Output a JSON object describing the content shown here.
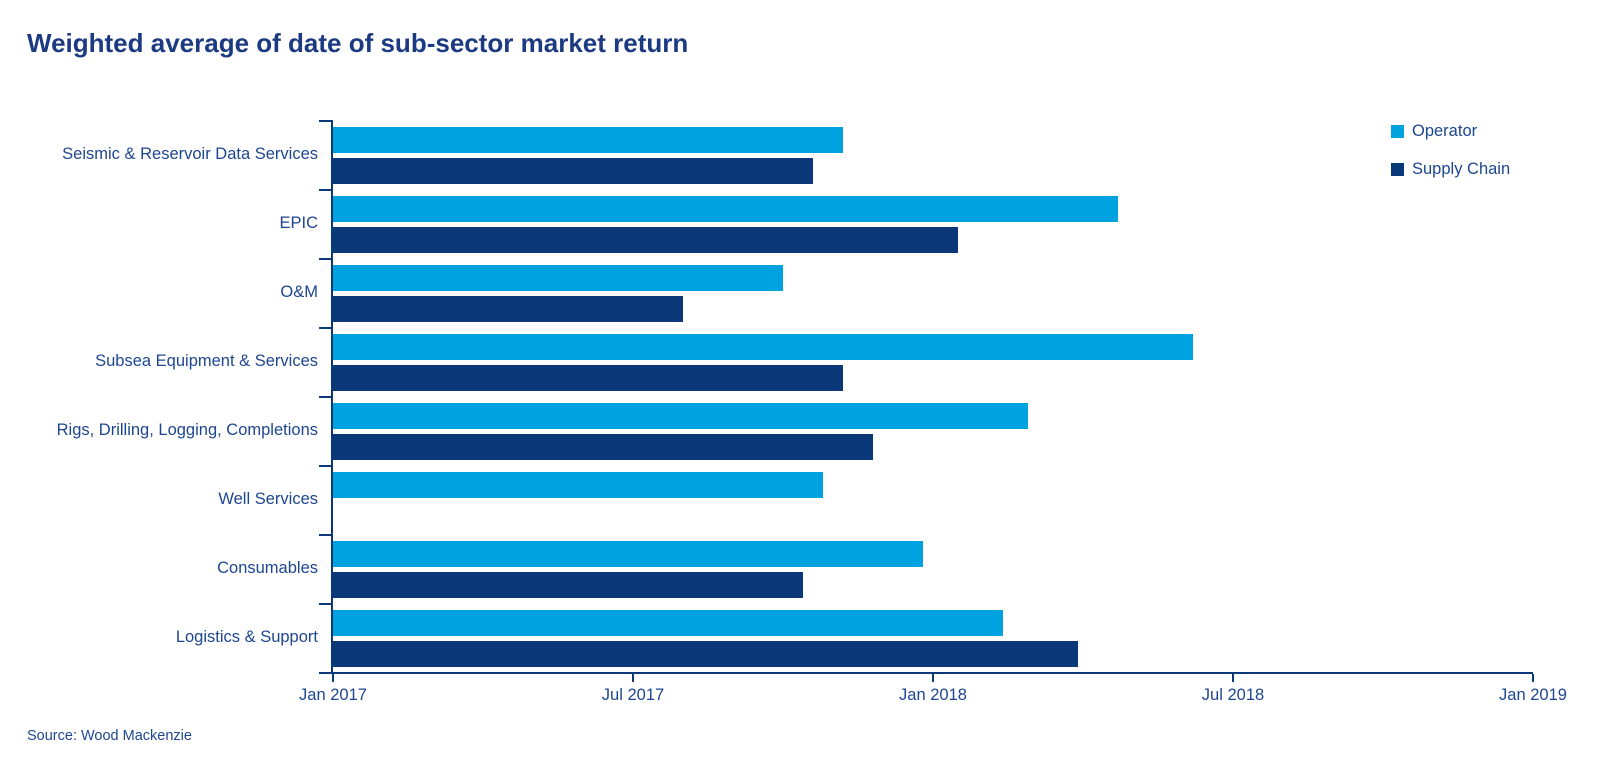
{
  "title": "Weighted average of date of sub-sector market return",
  "source_note": "Source: Wood Mackenzie",
  "colors": {
    "operator": "#00A3E0",
    "supply_chain": "#0B3878",
    "title_text": "#1B3A82",
    "label_text": "#1D4691",
    "axis": "#0B3878",
    "background": "#FFFFFF"
  },
  "legend": {
    "position": "top-right",
    "items": [
      {
        "label": "Operator",
        "color": "#00A3E0"
      },
      {
        "label": "Supply Chain",
        "color": "#0B3878"
      }
    ]
  },
  "chart_data": {
    "type": "bar",
    "orientation": "horizontal",
    "title": "Weighted average of date of sub-sector market return",
    "xlabel": "",
    "ylabel": "",
    "grid": false,
    "legend_position": "top-right",
    "categories": [
      "Seismic & Reservoir Data Services",
      "EPIC",
      "O&M",
      "Subsea Equipment & Services",
      "Rigs, Drilling, Logging, Completions",
      "Well Services",
      "Consumables",
      "Logistics & Support"
    ],
    "x_axis": {
      "tick_labels": [
        "Jan 2017",
        "Jul 2017",
        "Jan 2018",
        "Jul 2018",
        "Jan 2019"
      ],
      "range_months_after_jan2017": [
        0,
        24
      ],
      "months_per_tick": 6
    },
    "series": [
      {
        "name": "Operator",
        "color": "#00A3E0",
        "values_months_after_jan2017": [
          10.2,
          15.7,
          9.0,
          17.2,
          13.9,
          9.8,
          11.8,
          13.4
        ],
        "approx_dates": [
          "2017-11-07",
          "2018-04-22",
          "2017-10-01",
          "2018-06-07",
          "2018-02-28",
          "2017-10-25",
          "2017-12-25",
          "2018-02-13"
        ]
      },
      {
        "name": "Supply Chain",
        "color": "#0B3878",
        "values_months_after_jan2017": [
          9.6,
          12.5,
          7.0,
          10.2,
          10.8,
          null,
          9.4,
          14.9
        ],
        "approx_dates": [
          "2017-10-19",
          "2018-01-16",
          "2017-08-01",
          "2017-11-07",
          "2017-11-25",
          null,
          "2017-10-13",
          "2018-03-28"
        ]
      }
    ]
  }
}
